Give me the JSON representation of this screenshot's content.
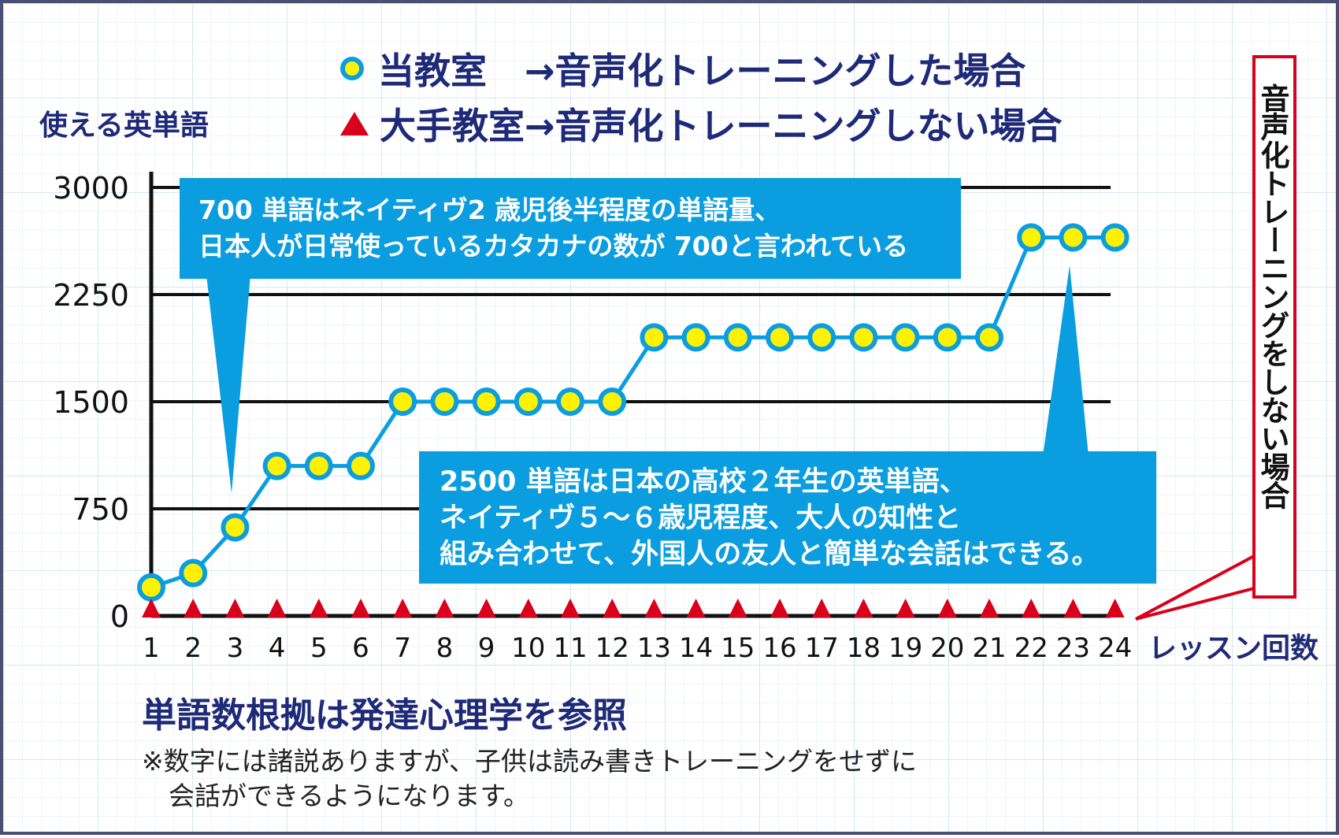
{
  "legend": {
    "series1": {
      "name": "当教室",
      "arrow": "→音声化トレーニングした場合"
    },
    "series2": {
      "name": "大手教室",
      "arrow": "→音声化トレーニングしない場合"
    }
  },
  "side_label": "音声化トレーニングをしない場合",
  "callout1": {
    "line1": "700 単語はネイティヴ2 歳児後半程度の単語量、",
    "line2": "日本人が日常使っているカタカナの数が 700と言われている"
  },
  "callout2": {
    "line1": "2500 単語は日本の高校２年生の英単語、",
    "line2": "ネイティヴ５〜６歳児程度、大人の知性と",
    "line3": "組み合わせて、外国人の友人と簡単な会話はできる。"
  },
  "notes": {
    "title": "単語数根拠は発達心理学を参照",
    "line1": "※数字には諸説ありますが、子供は読み書きトレーニングをせずに",
    "line2": "会話ができるようになります。"
  },
  "colors": {
    "navy": "#1e2a78",
    "line_blue": "#0a9ee0",
    "marker_yellow": "#fff200",
    "triangle_red": "#d9001b",
    "callout_blue": "#0a9ee0"
  },
  "chart_data": {
    "type": "line",
    "ylabel": "使える英単語",
    "xlabel": "レッスン回数",
    "x": [
      1,
      2,
      3,
      4,
      5,
      6,
      7,
      8,
      9,
      10,
      11,
      12,
      13,
      14,
      15,
      16,
      17,
      18,
      19,
      20,
      21,
      22,
      23,
      24
    ],
    "yticks": [
      0,
      750,
      1500,
      2250,
      3000
    ],
    "ylim": [
      0,
      3000
    ],
    "grid": "horizontal",
    "series": [
      {
        "name": "当教室",
        "marker": "circle",
        "values": [
          200,
          300,
          620,
          1050,
          1050,
          1050,
          1500,
          1500,
          1500,
          1500,
          1500,
          1500,
          1950,
          1950,
          1950,
          1950,
          1950,
          1950,
          1950,
          1950,
          1950,
          2650,
          2650,
          2650
        ]
      },
      {
        "name": "大手教室",
        "marker": "triangle",
        "values": [
          0,
          0,
          0,
          0,
          0,
          0,
          0,
          0,
          0,
          0,
          0,
          0,
          0,
          0,
          0,
          0,
          0,
          0,
          0,
          0,
          0,
          0,
          0,
          0
        ]
      }
    ]
  }
}
